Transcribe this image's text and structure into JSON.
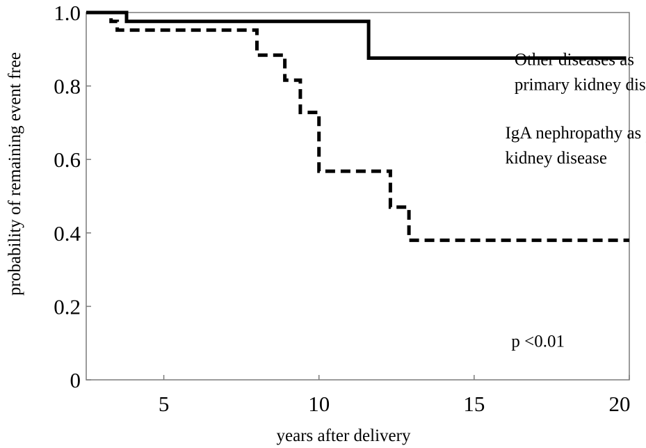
{
  "chart_data": {
    "type": "line",
    "title": "",
    "xlabel": "years after delivery",
    "ylabel": "probability of remaining event free",
    "xlim": [
      2.5,
      20
    ],
    "ylim": [
      0,
      1.0
    ],
    "x_ticks": [
      5,
      10,
      15,
      20
    ],
    "x_tick_labels": [
      "5",
      "10",
      "15",
      "20"
    ],
    "y_ticks": [
      0,
      0.2,
      0.4,
      0.6,
      0.8,
      1.0
    ],
    "y_tick_labels": [
      "0",
      "0.2",
      "0.4",
      "0.6",
      "0.8",
      "1.0"
    ],
    "grid": false,
    "series": [
      {
        "style": "solid",
        "color": "#000000",
        "label_lines": [
          "Other diseases as",
          "primary kidney disease"
        ],
        "steps": [
          [
            2.5,
            1.0
          ],
          [
            3.8,
            0.976
          ],
          [
            11.6,
            0.876
          ],
          [
            19.9,
            0.876
          ]
        ]
      },
      {
        "style": "dashed",
        "color": "#000000",
        "label_lines": [
          "IgA nephropathy as primary",
          "kidney disease"
        ],
        "steps": [
          [
            2.5,
            1.0
          ],
          [
            3.3,
            0.976
          ],
          [
            3.5,
            0.952
          ],
          [
            8.0,
            0.884
          ],
          [
            8.9,
            0.816
          ],
          [
            9.4,
            0.728
          ],
          [
            10.0,
            0.568
          ],
          [
            12.3,
            0.47
          ],
          [
            12.9,
            0.38
          ],
          [
            20.0,
            0.38
          ]
        ]
      }
    ],
    "annotations": [
      {
        "text": "p <0.01",
        "x": 16.2,
        "y": 0.09
      }
    ],
    "annotation_positions": [
      {
        "x": 16.3,
        "y": 0.8
      },
      {
        "x": 16.0,
        "y": 0.6
      }
    ]
  }
}
